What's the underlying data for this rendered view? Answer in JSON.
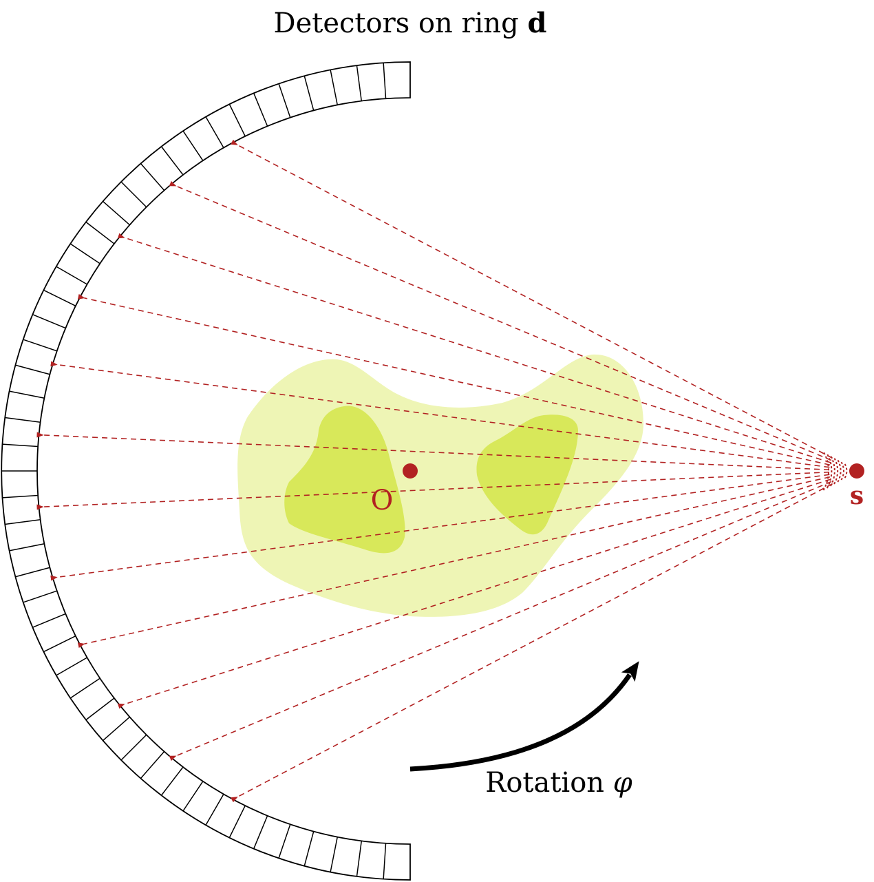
{
  "diagram": {
    "title_prefix": "Detectors on ring ",
    "title_bold": "d",
    "origin_label": "O",
    "source_label": "s",
    "rotation_label": "Rotation ",
    "rotation_symbol": "φ",
    "detector_count": 48,
    "ray_count": 12
  },
  "colors": {
    "ray": "#b22222",
    "outer_region": "#eef5b5",
    "inner_region": "#d8e85a",
    "ring_stroke": "#000000",
    "rotation_arrow": "#000000"
  }
}
